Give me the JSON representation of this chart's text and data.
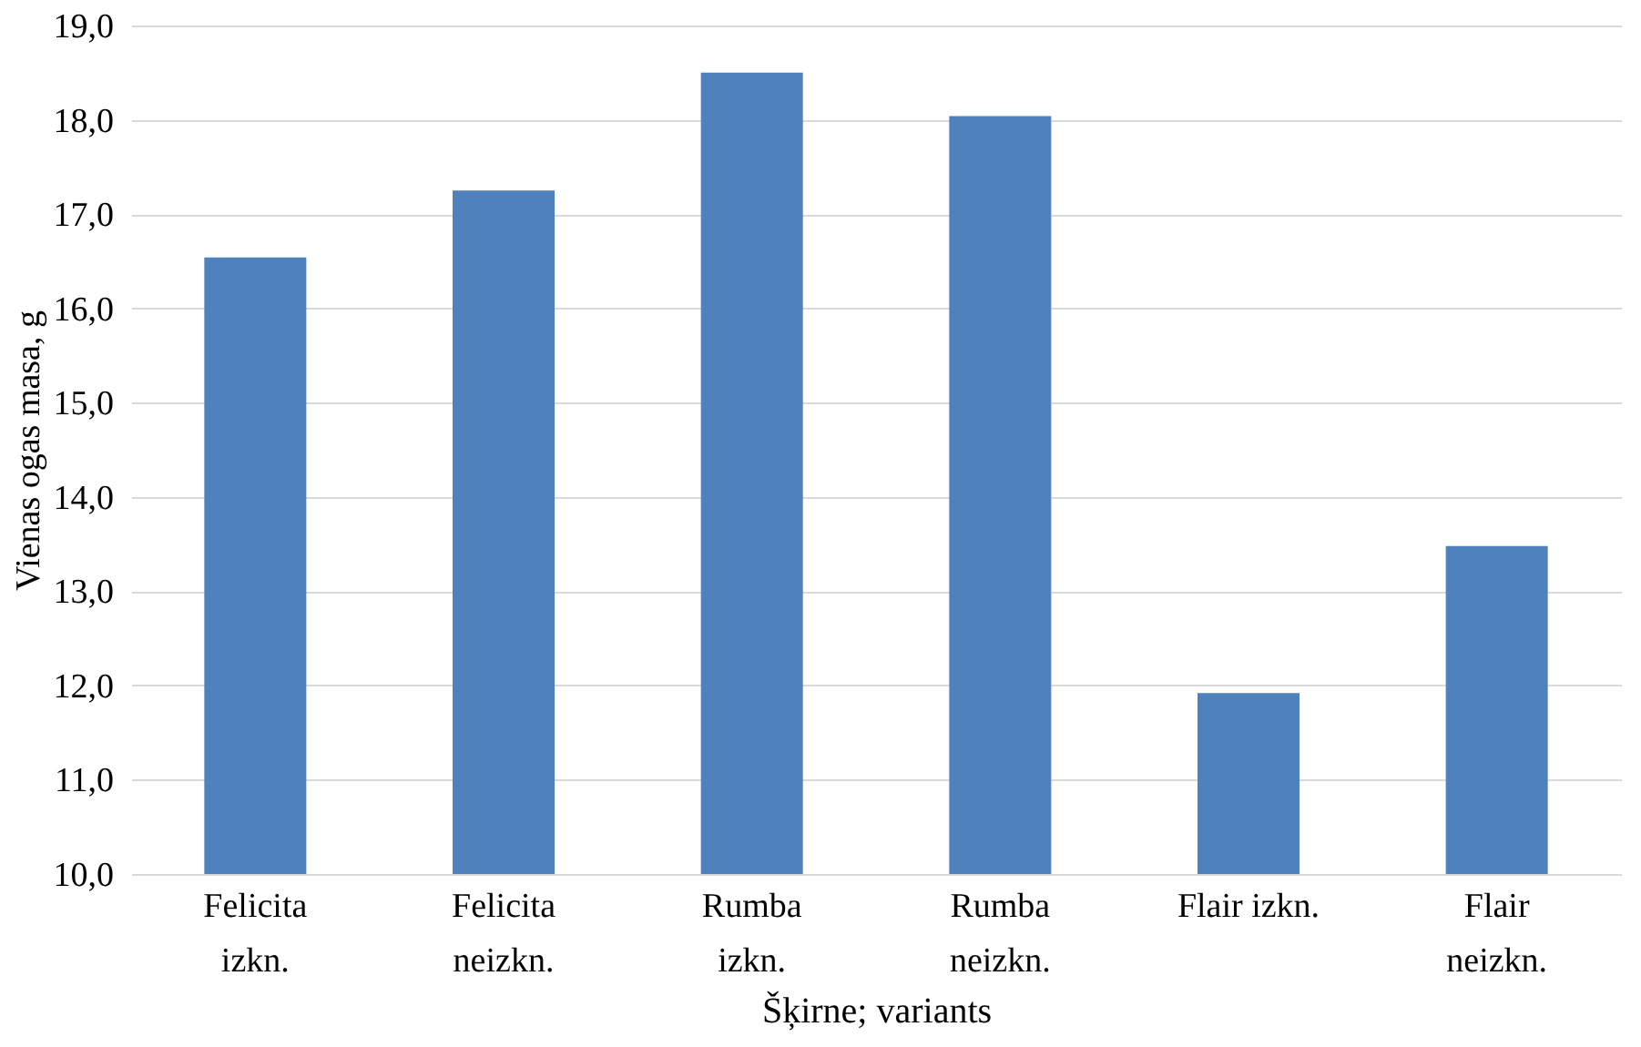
{
  "chart_data": {
    "type": "bar",
    "xlabel": "Šķirne; variants",
    "ylabel": "Vienas ogas masa, g",
    "categories": [
      "Felicita\nizkn.",
      "Felicita\nneizkn.",
      "Rumba\nizkn.",
      "Rumba\nneizkn.",
      "Flair izkn.",
      "Flair\nneizkn."
    ],
    "values": [
      16.54,
      17.25,
      18.5,
      18.04,
      11.92,
      13.48
    ],
    "color": "#4f81bd",
    "ylim": [
      10,
      19
    ],
    "yticks": [
      {
        "value": 10,
        "label": "10,0"
      },
      {
        "value": 11,
        "label": "11,0"
      },
      {
        "value": 12,
        "label": "12,0"
      },
      {
        "value": 13,
        "label": "13,0"
      },
      {
        "value": 14,
        "label": "14,0"
      },
      {
        "value": 15,
        "label": "15,0"
      },
      {
        "value": 16,
        "label": "16,0"
      },
      {
        "value": 17,
        "label": "17,0"
      },
      {
        "value": 18,
        "label": "18,0"
      },
      {
        "value": 19,
        "label": "19,0"
      }
    ],
    "grid": "y"
  }
}
